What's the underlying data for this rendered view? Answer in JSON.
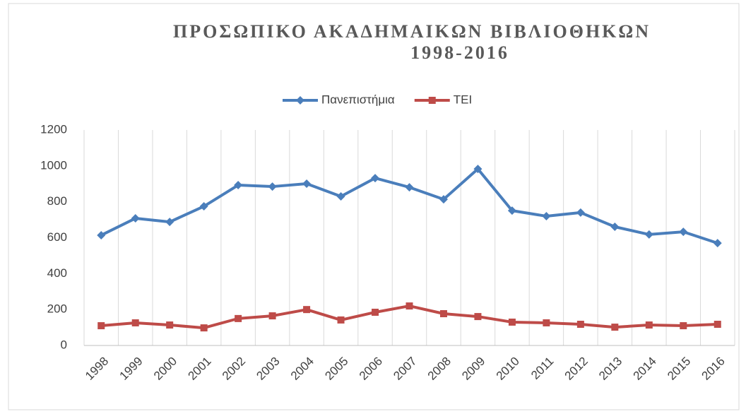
{
  "chart_data": {
    "type": "line",
    "title": "ΠΡΟΣΩΠΙΚΟ ΑΚΑΔΗΜΑΙΚΩΝ ΒΙΒΛΙΟΘΗΚΩΝ",
    "subtitle": "1998-2016",
    "categories": [
      "1998",
      "1999",
      "2000",
      "2001",
      "2002",
      "2003",
      "2004",
      "2005",
      "2006",
      "2007",
      "2008",
      "2009",
      "2010",
      "2011",
      "2012",
      "2013",
      "2014",
      "2015",
      "2016"
    ],
    "series": [
      {
        "name": "Πανεπιστήμια",
        "color": "#4a7ebb",
        "marker": "diamond",
        "values": [
          614,
          708,
          688,
          775,
          893,
          885,
          901,
          830,
          932,
          881,
          814,
          983,
          751,
          720,
          740,
          661,
          618,
          633,
          570
        ]
      },
      {
        "name": "ΤΕΙ",
        "color": "#be4b48",
        "marker": "square",
        "values": [
          110,
          126,
          114,
          98,
          150,
          165,
          200,
          142,
          185,
          220,
          177,
          161,
          130,
          126,
          118,
          102,
          114,
          110,
          118
        ]
      }
    ],
    "ylim": [
      0,
      1200
    ],
    "yticks": [
      0,
      200,
      400,
      600,
      800,
      1000,
      1200
    ],
    "legend": "top",
    "grid": "vertical"
  }
}
